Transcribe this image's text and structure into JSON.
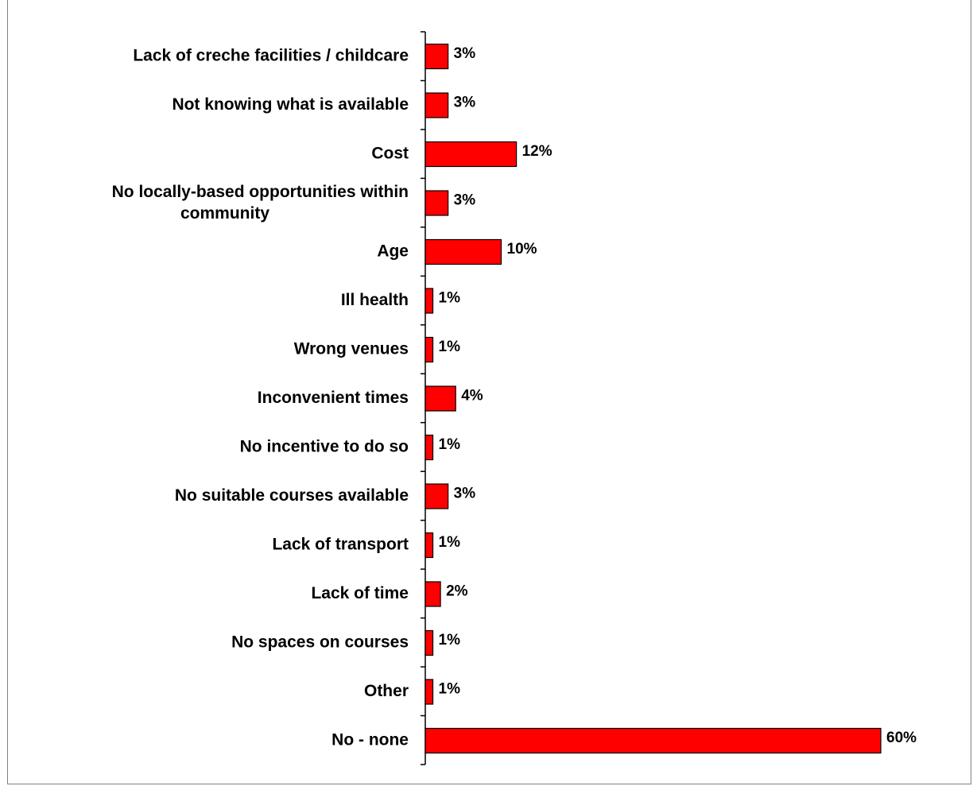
{
  "chart_data": {
    "type": "bar",
    "orientation": "horizontal",
    "categories": [
      "Lack of creche facilities / childcare",
      "Not knowing what is available",
      "Cost",
      "No locally-based opportunities within community",
      "Age",
      "Ill health",
      "Wrong venues",
      "Inconvenient times",
      "No incentive to do so",
      "No suitable courses available",
      "Lack of transport",
      "Lack of time",
      "No spaces on courses",
      "Other",
      "No - none"
    ],
    "values": [
      3,
      3,
      12,
      3,
      10,
      1,
      1,
      4,
      1,
      3,
      1,
      2,
      1,
      1,
      60
    ],
    "value_labels": [
      "3%",
      "3%",
      "12%",
      "3%",
      "10%",
      "1%",
      "1%",
      "4%",
      "1%",
      "3%",
      "1%",
      "2%",
      "1%",
      "1%",
      "60%"
    ],
    "unit": "%",
    "title": "",
    "xlabel": "",
    "ylabel": "",
    "xlim": [
      0,
      60
    ],
    "grid": false,
    "legend": "none",
    "colors": {
      "bar_fill": "#ff0000",
      "bar_stroke": "#000000",
      "axis": "#000000",
      "frame": "#808080"
    }
  }
}
